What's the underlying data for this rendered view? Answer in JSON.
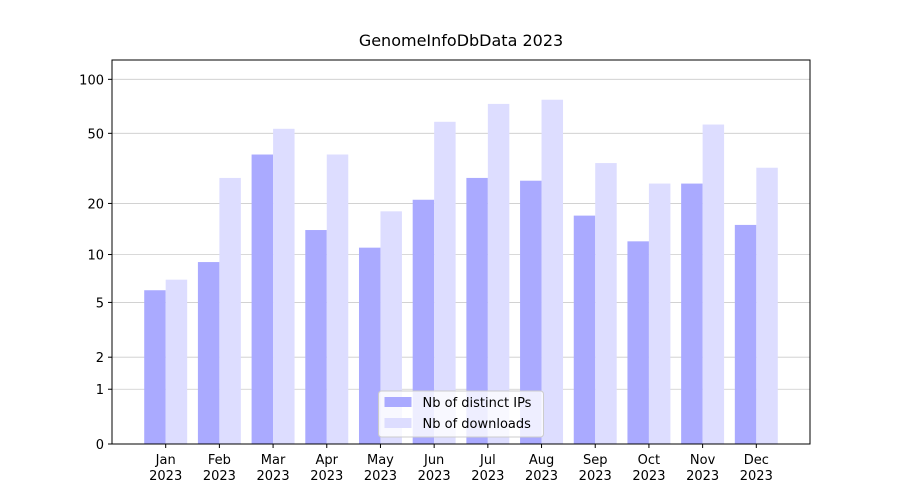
{
  "chart_data": {
    "type": "bar",
    "title": "GenomeInfoDbData 2023",
    "categories": [
      "Jan\n2023",
      "Feb\n2023",
      "Mar\n2023",
      "Apr\n2023",
      "May\n2023",
      "Jun\n2023",
      "Jul\n2023",
      "Aug\n2023",
      "Sep\n2023",
      "Oct\n2023",
      "Nov\n2023",
      "Dec\n2023"
    ],
    "series": [
      {
        "name": "Nb of distinct IPs",
        "color": "#aaaaff",
        "values": [
          6,
          9,
          38,
          14,
          11,
          21,
          28,
          27,
          17,
          12,
          26,
          15
        ]
      },
      {
        "name": "Nb of downloads",
        "color": "#ddddff",
        "values": [
          7,
          28,
          53,
          38,
          18,
          58,
          73,
          77,
          34,
          26,
          56,
          32
        ]
      }
    ],
    "yscale": "symlog",
    "ylim": [
      0,
      128
    ],
    "yticks": [
      0,
      1,
      2,
      5,
      10,
      20,
      50,
      100
    ],
    "grid": true,
    "legend": "lower center"
  }
}
